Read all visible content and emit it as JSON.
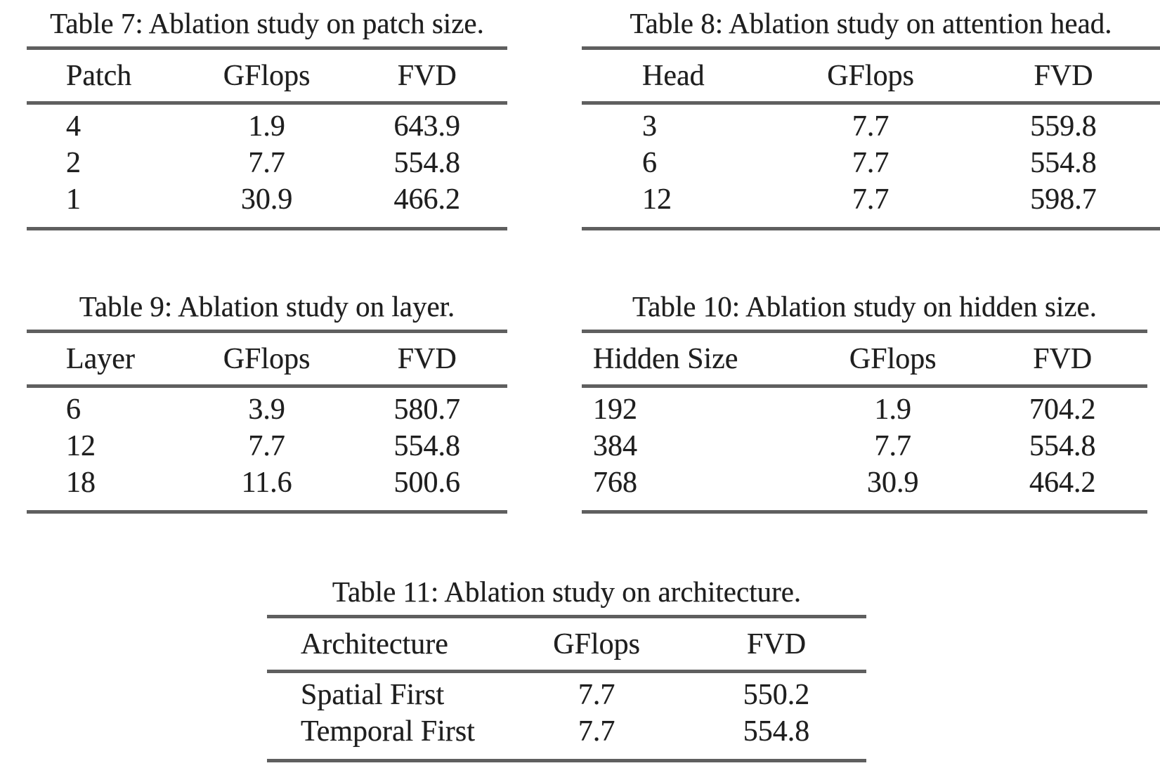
{
  "page": {
    "background": "#ffffff",
    "text_color": "#1f1f1f",
    "rule_color": "#5f5f5f"
  },
  "tables": {
    "t7": {
      "caption": "Table 7: Ablation study on patch size.",
      "columns": [
        "Patch",
        "GFlops",
        "FVD"
      ],
      "rows": [
        [
          "4",
          "1.9",
          "643.9"
        ],
        [
          "2",
          "7.7",
          "554.8"
        ],
        [
          "1",
          "30.9",
          "466.2"
        ]
      ]
    },
    "t8": {
      "caption": "Table 8: Ablation study on attention head.",
      "columns": [
        "Head",
        "GFlops",
        "FVD"
      ],
      "rows": [
        [
          "3",
          "7.7",
          "559.8"
        ],
        [
          "6",
          "7.7",
          "554.8"
        ],
        [
          "12",
          "7.7",
          "598.7"
        ]
      ]
    },
    "t9": {
      "caption": "Table 9: Ablation study on layer.",
      "columns": [
        "Layer",
        "GFlops",
        "FVD"
      ],
      "rows": [
        [
          "6",
          "3.9",
          "580.7"
        ],
        [
          "12",
          "7.7",
          "554.8"
        ],
        [
          "18",
          "11.6",
          "500.6"
        ]
      ]
    },
    "t10": {
      "caption": "Table 10: Ablation study on hidden size.",
      "columns": [
        "Hidden Size",
        "GFlops",
        "FVD"
      ],
      "rows": [
        [
          "192",
          "1.9",
          "704.2"
        ],
        [
          "384",
          "7.7",
          "554.8"
        ],
        [
          "768",
          "30.9",
          "464.2"
        ]
      ]
    },
    "t11": {
      "caption": "Table 11: Ablation study on architecture.",
      "columns": [
        "Architecture",
        "GFlops",
        "FVD"
      ],
      "rows": [
        [
          "Spatial First",
          "7.7",
          "550.2"
        ],
        [
          "Temporal First",
          "7.7",
          "554.8"
        ]
      ]
    }
  }
}
